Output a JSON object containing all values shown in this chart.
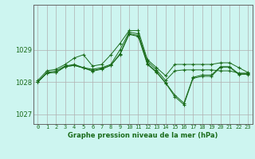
{
  "title": "Graphe pression niveau de la mer (hPa)",
  "bg_color": "#cdf5f0",
  "line_color": "#1a6b1a",
  "grid_color": "#b0b0b0",
  "x_labels": [
    "0",
    "1",
    "2",
    "3",
    "4",
    "5",
    "6",
    "7",
    "8",
    "9",
    "10",
    "11",
    "12",
    "13",
    "14",
    "15",
    "16",
    "17",
    "18",
    "19",
    "20",
    "21",
    "22",
    "23"
  ],
  "ylim": [
    1026.7,
    1030.4
  ],
  "yticks": [
    1027,
    1028,
    1029
  ],
  "series": [
    [
      1028.05,
      1028.35,
      1028.4,
      1028.55,
      1028.75,
      1028.85,
      1028.5,
      1028.55,
      1028.85,
      1029.2,
      1029.6,
      1029.6,
      1028.7,
      1028.45,
      1028.2,
      1028.55,
      1028.55,
      1028.55,
      1028.55,
      1028.55,
      1028.6,
      1028.6,
      1028.45,
      1028.3
    ],
    [
      1028.0,
      1028.3,
      1028.35,
      1028.5,
      1028.55,
      1028.45,
      1028.4,
      1028.45,
      1028.55,
      1029.0,
      1029.55,
      1029.5,
      1028.65,
      1028.38,
      1028.05,
      1028.35,
      1028.38,
      1028.38,
      1028.38,
      1028.38,
      1028.35,
      1028.35,
      1028.28,
      1028.28
    ],
    [
      1028.0,
      1028.28,
      1028.3,
      1028.48,
      1028.52,
      1028.44,
      1028.36,
      1028.42,
      1028.52,
      1028.88,
      1029.5,
      1029.45,
      1028.58,
      1028.32,
      1027.98,
      1027.6,
      1027.35,
      1028.15,
      1028.22,
      1028.22,
      1028.48,
      1028.48,
      1028.26,
      1028.26
    ],
    [
      1028.0,
      1028.28,
      1028.3,
      1028.48,
      1028.52,
      1028.44,
      1028.34,
      1028.4,
      1028.52,
      1028.85,
      1029.48,
      1029.42,
      1028.55,
      1028.3,
      1027.97,
      1027.55,
      1027.3,
      1028.12,
      1028.18,
      1028.18,
      1028.46,
      1028.46,
      1028.24,
      1028.24
    ]
  ]
}
